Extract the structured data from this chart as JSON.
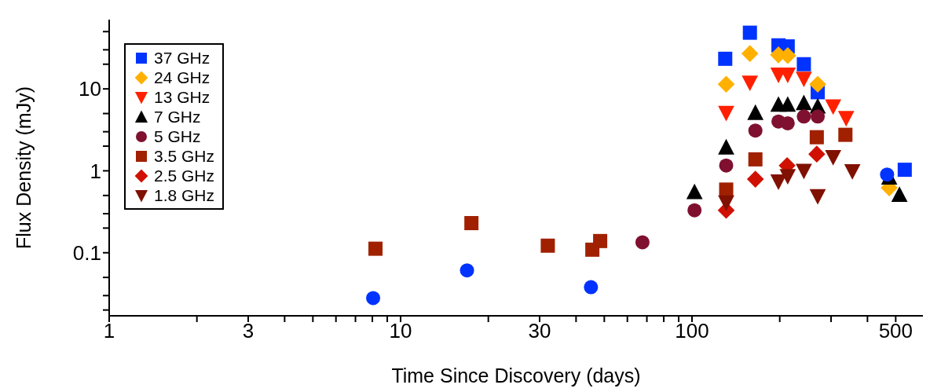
{
  "chart_data": {
    "type": "scatter",
    "xlabel": "Time Since Discovery (days)",
    "ylabel": "Flux Density (mJy)",
    "log": "xy",
    "grid": false,
    "legend": "top left",
    "xlim": [
      1,
      620
    ],
    "xticks": [
      1,
      {
        "value": 2,
        "label": null
      },
      3,
      {
        "value": 4,
        "label": null
      },
      {
        "value": 5,
        "label": null
      },
      {
        "value": 6,
        "label": null
      },
      {
        "value": 7,
        "label": null
      },
      {
        "value": 8,
        "label": null
      },
      {
        "value": 9,
        "label": null
      },
      10,
      {
        "value": 20,
        "label": null
      },
      30,
      {
        "value": 40,
        "label": null
      },
      {
        "value": 50,
        "label": null
      },
      {
        "value": 60,
        "label": null
      },
      {
        "value": 70,
        "label": null
      },
      {
        "value": 80,
        "label": null
      },
      {
        "value": 90,
        "label": null
      },
      100,
      {
        "value": 200,
        "label": null
      },
      {
        "value": 300,
        "label": null
      },
      {
        "value": 400,
        "label": null
      },
      500
    ],
    "ylim": [
      0.017,
      70
    ],
    "yticks": [
      {
        "value": 0.02,
        "label": null
      },
      {
        "value": 0.03,
        "label": null
      },
      {
        "value": 0.05,
        "label": null
      },
      0.1,
      {
        "value": 0.2,
        "label": null
      },
      {
        "value": 0.3,
        "label": null
      },
      {
        "value": 0.5,
        "label": null
      },
      1,
      {
        "value": 2,
        "label": null
      },
      {
        "value": 3,
        "label": null
      },
      {
        "value": 5,
        "label": null
      },
      10,
      {
        "value": 20,
        "label": null
      },
      {
        "value": 30,
        "label": null
      },
      {
        "value": 50,
        "label": null
      }
    ],
    "series": [
      {
        "name": "37 GHz",
        "color": "#0033ff",
        "marker": "square",
        "x": [
          130,
          158,
          198,
          213,
          242,
          270,
          537
        ],
        "values": [
          23.3,
          48.5,
          34,
          33,
          20,
          9.1,
          1.03
        ]
      },
      {
        "name": "24 GHz",
        "color": "#ffb000",
        "marker": "diamond",
        "x": [
          131,
          158,
          198,
          213,
          270,
          475
        ],
        "values": [
          11.4,
          27,
          26,
          25.5,
          11.4,
          0.62
        ]
      },
      {
        "name": "13 GHz",
        "color": "#ff2000",
        "marker": "triangle-down",
        "x": [
          131,
          158,
          198,
          213,
          242,
          305,
          338
        ],
        "values": [
          5.1,
          11.9,
          14.9,
          14.9,
          13.3,
          6.1,
          4.4
        ]
      },
      {
        "name": "7 GHz",
        "color": "#000000",
        "marker": "triangle",
        "x": [
          102,
          131,
          165,
          198,
          213,
          242,
          270,
          475,
          515
        ],
        "values": [
          0.55,
          1.93,
          5.1,
          6.4,
          6.4,
          6.7,
          6.1,
          0.83,
          0.51
        ]
      },
      {
        "name": "5 GHz",
        "color": "#7f1030",
        "marker": "circle",
        "x": [
          67.6,
          102,
          131,
          165,
          198,
          213,
          242,
          270
        ],
        "values": [
          0.134,
          0.33,
          1.16,
          3.1,
          4.0,
          3.8,
          4.6,
          4.6
        ]
      },
      {
        "name": "3.5 GHz",
        "color": "#a02000",
        "marker": "square",
        "x": [
          8.2,
          17.5,
          32,
          45.5,
          48.4,
          131,
          165,
          268,
          336
        ],
        "values": [
          0.112,
          0.23,
          0.122,
          0.109,
          0.139,
          0.59,
          1.38,
          2.57,
          2.75
        ]
      },
      {
        "name": "2.5 GHz",
        "color": "#d01000",
        "marker": "diamond",
        "x": [
          131,
          165,
          212,
          268
        ],
        "values": [
          0.33,
          0.79,
          1.16,
          1.6
        ]
      },
      {
        "name": "1.8 GHz",
        "color": "#801000",
        "marker": "triangle-down",
        "x": [
          131,
          198,
          213,
          242,
          270,
          305,
          355
        ],
        "values": [
          0.41,
          0.74,
          0.86,
          1.0,
          0.49,
          1.47,
          0.99
        ]
      },
      {
        "color": "#0033ff",
        "marker": "circle",
        "x": [
          8.05,
          16.9,
          45,
          467
        ],
        "values": [
          0.028,
          0.061,
          0.038,
          0.9
        ]
      }
    ]
  }
}
